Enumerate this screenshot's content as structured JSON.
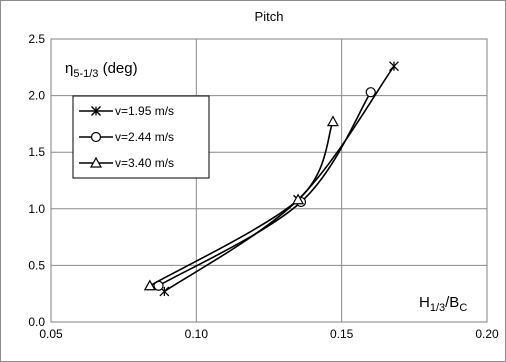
{
  "chart_data": {
    "type": "line",
    "title": "Pitch",
    "ylabel": {
      "main": "η",
      "sub": "5-1/3",
      "rest": " (deg)"
    },
    "xlabel": {
      "a": "H",
      "a_sub": "1/3",
      "slash": "/B",
      "b_sub": "C"
    },
    "xlim": [
      0.05,
      0.2
    ],
    "ylim": [
      0.0,
      2.5
    ],
    "xticks": [
      "0.05",
      "0.10",
      "0.15",
      "0.20"
    ],
    "yticks": [
      "0.0",
      "0.5",
      "1.0",
      "1.5",
      "2.0",
      "2.5"
    ],
    "grid": true,
    "legend_position": "upper-left",
    "line_color": "#000000",
    "series": [
      {
        "name": "v=1.95 m/s",
        "marker": "star",
        "x": [
          0.089,
          0.135,
          0.168
        ],
        "y": [
          0.27,
          1.08,
          2.26
        ]
      },
      {
        "name": "v=2.44 m/s",
        "marker": "circle",
        "x": [
          0.087,
          0.136,
          0.16
        ],
        "y": [
          0.32,
          1.06,
          2.03
        ]
      },
      {
        "name": "v=3.40 m/s",
        "marker": "triangle",
        "x": [
          0.084,
          0.135,
          0.147
        ],
        "y": [
          0.32,
          1.08,
          1.77
        ]
      }
    ]
  }
}
